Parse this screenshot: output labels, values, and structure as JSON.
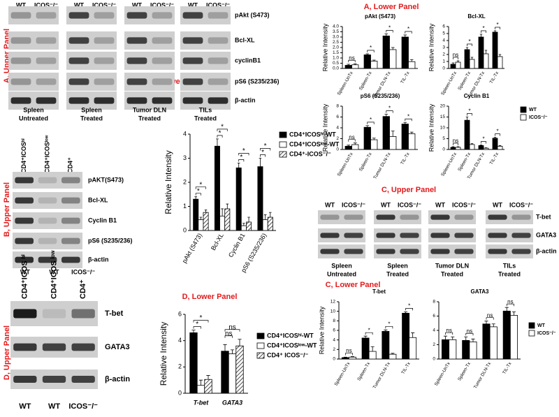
{
  "panel_titles": {
    "a": "A, Lower Panel",
    "b": "B, Lower Panel",
    "c": "C, Lower Panel",
    "d": "D, Lower Panel"
  },
  "blots": {
    "a": {
      "label": "A, Upper Panel",
      "lanes": [
        "WT",
        "ICOS⁻/⁻"
      ],
      "groups": [
        [
          "Spleen",
          "Untreated"
        ],
        [
          "Spleen",
          "Treated"
        ],
        [
          "Tumor DLN",
          "Treated"
        ],
        [
          "TILs",
          "Treated"
        ]
      ],
      "proteins": [
        "pAkt (S473)",
        "Bcl-XL",
        "cyclinB1",
        "pS6 (S235/236)",
        "β-actin"
      ]
    },
    "b": {
      "label": "B, Upper Panel",
      "lanes": [
        "CD4⁺ICOSʰⁱ",
        "CD4⁺ICOSˡᵒʷ",
        "CD4⁺"
      ],
      "proteins": [
        "pAKT(S473)",
        "Bcl-XL",
        "Cyclin B1",
        "pS6 (S235/236)",
        "β-actin"
      ]
    },
    "c": {
      "label": "C, Upper Panel",
      "lanes": [
        "WT",
        "ICOS⁻/⁻"
      ],
      "groups": [
        [
          "Spleen",
          "Untreated"
        ],
        [
          "Spleen",
          "Treated"
        ],
        [
          "Tumor DLN",
          "Treated"
        ],
        [
          "TILs",
          "Treated"
        ]
      ],
      "proteins": [
        "T-bet",
        "GATA3",
        "β-actin"
      ]
    },
    "d": {
      "label": "D, Upper Panel",
      "genotypes": [
        "WT",
        "WT",
        "ICOS⁻/⁻"
      ],
      "lanes": [
        "CD4⁺ICOS ʰⁱ",
        "CD4⁺ICOS ˡᵒʷ",
        "CD4⁺"
      ],
      "proteins": [
        "T-bet",
        "GATA3",
        "β-actin"
      ]
    }
  },
  "chart_data": [
    {
      "type": "bar",
      "title": "pAkt (S473)",
      "ylabel": "Relative Intensity",
      "categories": [
        "Spleen-UnTx",
        "Spleen-Tx",
        "Tumor DLN-Tx",
        "TIL-Tx"
      ],
      "series": [
        {
          "name": "WT",
          "color": "#000000",
          "values": [
            0.3,
            1.3,
            3.1,
            3.0
          ],
          "errors": [
            0.1,
            0.1,
            0.2,
            0.2
          ]
        },
        {
          "name": "ICOS⁻/⁻",
          "color": "#ffffff",
          "values": [
            0.35,
            0.7,
            1.8,
            0.65
          ],
          "errors": [
            0.1,
            0.1,
            0.2,
            0.2
          ]
        }
      ],
      "significance": [
        [
          "ns"
        ],
        [
          "*"
        ],
        [
          "*"
        ],
        [
          "*"
        ]
      ],
      "ylim": [
        0,
        4
      ],
      "yticks": [
        {
          "value": 0,
          "label": "0.0"
        },
        {
          "value": 0.5,
          "label": "0.5"
        },
        {
          "value": 1,
          "label": "1.0"
        },
        {
          "value": 1.5,
          "label": "1.5"
        },
        {
          "value": 2,
          "label": "2.0"
        },
        {
          "value": 2.5,
          "label": "2.5"
        },
        {
          "value": 3,
          "label": "3.0"
        },
        {
          "value": 3.5,
          "label": "3.5"
        },
        {
          "value": 4,
          "label": "4.0"
        }
      ],
      "legend": false
    },
    {
      "type": "bar",
      "title": "Bcl-XL",
      "ylabel": "Relative Intensity",
      "categories": [
        "Spleen-UnTx",
        "Spleen-Tx",
        "Tumor DLN-Tx",
        "TIL-Tx"
      ],
      "series": [
        {
          "name": "WT",
          "color": "#000000",
          "values": [
            0.6,
            2.7,
            4.5,
            5.2
          ],
          "errors": [
            0.2,
            0.3,
            0.4,
            0.2
          ]
        },
        {
          "name": "ICOS⁻/⁻",
          "color": "#ffffff",
          "values": [
            0.9,
            1.3,
            2.1,
            1.7
          ],
          "errors": [
            0.2,
            0.3,
            0.5,
            0.3
          ]
        }
      ],
      "significance": [
        [
          "ns"
        ],
        [
          "*"
        ],
        [
          "*"
        ],
        [
          "*"
        ]
      ],
      "ylim": [
        0,
        6
      ],
      "yticks": [
        0,
        1,
        2,
        3,
        4,
        5,
        6
      ],
      "legend": false
    },
    {
      "type": "bar",
      "title": "pS6 (S235/236)",
      "ylabel": "Relative Intensity",
      "categories": [
        "Spleen-UnTx",
        "Spleen-Tx",
        "Tumor DLN-Tx",
        "TIL-Tx"
      ],
      "series": [
        {
          "name": "WT",
          "color": "#000000",
          "values": [
            0.6,
            4.1,
            6.1,
            4.7
          ],
          "errors": [
            0.2,
            0.3,
            0.4,
            0.3
          ]
        },
        {
          "name": "ICOS⁻/⁻",
          "color": "#ffffff",
          "values": [
            0.9,
            1.8,
            2.4,
            2.9
          ],
          "errors": [
            0.3,
            0.3,
            1.0,
            0.3
          ]
        }
      ],
      "significance": [
        [
          "ns"
        ],
        [
          "*"
        ],
        [
          "*"
        ],
        [
          "*"
        ]
      ],
      "ylim": [
        0,
        8
      ],
      "yticks": [
        0,
        2,
        4,
        6,
        8
      ],
      "legend": false
    },
    {
      "type": "bar",
      "title": "Cyclin B1",
      "ylabel": "Relative Intensity",
      "categories": [
        "Spleen-UnTx",
        "Spleen-Tx",
        "Tumor DLN-Tx",
        "TIL-Tx"
      ],
      "series": [
        {
          "name": "WT",
          "color": "#000000",
          "values": [
            1.0,
            13.5,
            1.8,
            5.2
          ],
          "errors": [
            0.3,
            1.5,
            0.3,
            0.4
          ]
        },
        {
          "name": "ICOS⁻/⁻",
          "color": "#ffffff",
          "values": [
            1.0,
            2.3,
            0.6,
            1.5
          ],
          "errors": [
            0.3,
            0.4,
            0.2,
            0.3
          ]
        }
      ],
      "significance": [
        [
          "ns"
        ],
        [
          "*"
        ],
        [
          "*"
        ],
        [
          "*"
        ]
      ],
      "ylim": [
        0,
        20
      ],
      "yticks": [
        0,
        5,
        10,
        15,
        20
      ],
      "legend": true
    },
    {
      "type": "bar",
      "ylabel": "Relative Intensity",
      "categories": [
        "pAkt (S473)",
        "Bcl-XL",
        "Cyclin B1",
        "pS6 (S235/236)"
      ],
      "series": [
        {
          "name": "CD4⁺ICOSʰⁱ-WT",
          "color": "#000000",
          "values": [
            1.3,
            3.5,
            2.6,
            2.65
          ],
          "errors": [
            0.1,
            0.3,
            0.2,
            0.35
          ]
        },
        {
          "name": "CD4⁺ICOSˡᵒʷ-WT",
          "color": "#ffffff",
          "values": [
            0.45,
            0.6,
            0.2,
            0.45
          ],
          "errors": [
            0.1,
            0.3,
            0.1,
            0.2
          ]
        },
        {
          "name": "CD4⁺-ICOS⁻/⁻",
          "color": "#ffffff",
          "pattern": "hatch",
          "values": [
            0.75,
            0.9,
            0.35,
            0.55
          ],
          "errors": [
            0.1,
            0.2,
            0.2,
            0.2
          ]
        }
      ],
      "significance": [
        [
          "*",
          "*"
        ],
        [
          "*",
          "*"
        ],
        [
          "*",
          "*"
        ],
        [
          "*",
          "*"
        ]
      ],
      "ylim": [
        0,
        4
      ],
      "yticks": [
        0,
        1,
        2,
        3,
        4
      ],
      "legend": true
    },
    {
      "type": "bar",
      "ylabel": "Relative Intensity",
      "categories": [
        "T-bet",
        "GATA3"
      ],
      "series": [
        {
          "name": "CD4⁺ICOSʰⁱ-WT",
          "color": "#000000",
          "values": [
            4.6,
            3.2
          ],
          "errors": [
            0.2,
            0.5
          ]
        },
        {
          "name": "CD4⁺ICOSˡᵒʷ-WT",
          "color": "#ffffff",
          "values": [
            0.6,
            3.0
          ],
          "errors": [
            0.4,
            0.3
          ]
        },
        {
          "name": "CD4⁺ ICOS⁻/⁻",
          "color": "#ffffff",
          "pattern": "hatch",
          "values": [
            1.05,
            3.6
          ],
          "errors": [
            0.3,
            0.5
          ]
        }
      ],
      "significance": [
        [
          "*",
          "*"
        ],
        [
          "ns",
          "ns"
        ]
      ],
      "ylim": [
        0,
        6
      ],
      "yticks": [
        0,
        2,
        4,
        6
      ],
      "legend": true
    },
    {
      "type": "bar",
      "title": "T-bet",
      "ylabel": "Relative Intensity",
      "categories": [
        "Spleen-UnTx",
        "Spleen-Tx",
        "Tumor DLN-Tx",
        "TIL-Tx"
      ],
      "series": [
        {
          "name": "WT",
          "color": "#000000",
          "values": [
            0.3,
            4.4,
            5.8,
            9.6
          ],
          "errors": [
            0.1,
            0.4,
            0.3,
            0.3
          ]
        },
        {
          "name": "ICOS⁻/⁻",
          "color": "#ffffff",
          "values": [
            0.4,
            1.6,
            1.0,
            4.5
          ],
          "errors": [
            0.1,
            1.0,
            0.2,
            1.0
          ]
        }
      ],
      "significance": [
        [
          "ns"
        ],
        [
          "*"
        ],
        [
          "*"
        ],
        [
          "*"
        ]
      ],
      "ylim": [
        0,
        12
      ],
      "yticks": [
        0,
        2,
        4,
        6,
        8,
        10,
        12
      ],
      "legend": false
    },
    {
      "type": "bar",
      "title": "GATA3",
      "categories": [
        "Spleen-UnTx",
        "Spleen-Tx",
        "Tumor DLN-Tx",
        "TIL-Tx"
      ],
      "series": [
        {
          "name": "WT",
          "color": "#000000",
          "values": [
            2.7,
            2.6,
            4.9,
            6.7
          ],
          "errors": [
            0.5,
            0.5,
            0.4,
            0.5
          ]
        },
        {
          "name": "ICOS⁻/⁻",
          "color": "#ffffff",
          "values": [
            2.7,
            2.4,
            4.5,
            6.1
          ],
          "errors": [
            0.4,
            0.4,
            0.4,
            0.5
          ]
        }
      ],
      "significance": [
        [
          "ns"
        ],
        [
          "ns"
        ],
        [
          "ns"
        ],
        [
          "ns"
        ]
      ],
      "ylim": [
        0,
        8
      ],
      "yticks": [
        0,
        2,
        4,
        6,
        8
      ],
      "legend": true
    }
  ]
}
